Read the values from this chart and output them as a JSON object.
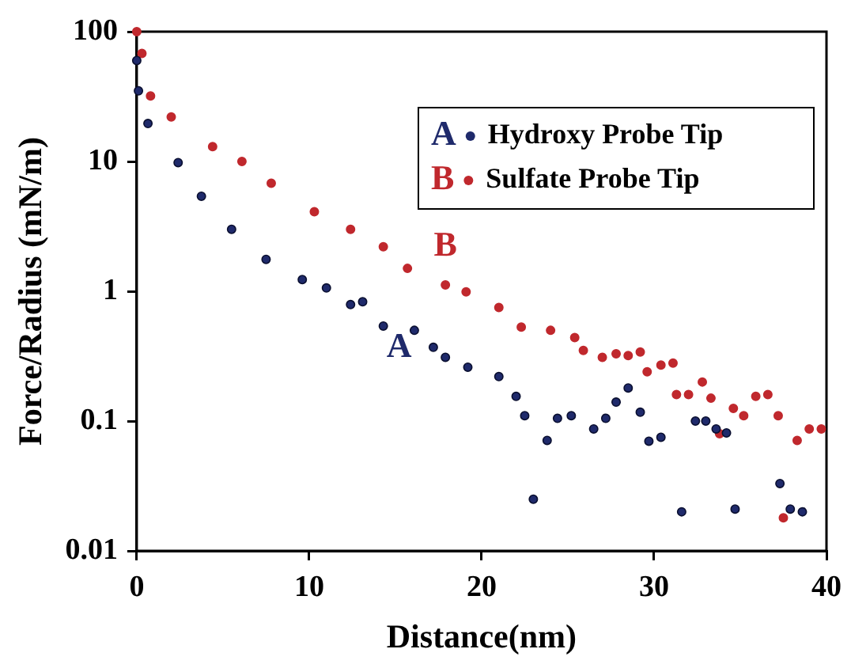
{
  "chart_data": {
    "type": "scatter",
    "xlabel": "Distance(nm)",
    "ylabel": "Force/Radius (mN/m)",
    "log": "y",
    "grid": false,
    "legend": "top right",
    "marker": "circle",
    "xlim": [
      0,
      40
    ],
    "xticks": [
      0,
      10,
      20,
      30,
      40
    ],
    "ylim": [
      0.01,
      100
    ],
    "yticks": [
      0.01,
      0.1,
      1,
      10,
      100
    ],
    "series": [
      {
        "name": "Hydroxy Probe Tip",
        "color": "#1f2a6b",
        "x": [
          0,
          0.1,
          0.65,
          2.4,
          3.75,
          5.5,
          7.5,
          9.6,
          11,
          12.4,
          13.1,
          14.3,
          16.1,
          17.2,
          17.9,
          19.2,
          21,
          22,
          22.5,
          23,
          23.8,
          24.4,
          25.2,
          26.5,
          27.2,
          27.8,
          28.5,
          29.2,
          29.7,
          30.4,
          31.6,
          32.4,
          33,
          33.6,
          34.2,
          34.7,
          37.3,
          37.9,
          38.6
        ],
        "values": [
          60,
          35,
          19.6,
          9.8,
          5.4,
          3.0,
          1.76,
          1.23,
          1.06,
          0.79,
          0.83,
          0.54,
          0.5,
          0.37,
          0.31,
          0.26,
          0.22,
          0.155,
          0.11,
          0.025,
          0.071,
          0.105,
          0.11,
          0.087,
          0.105,
          0.14,
          0.18,
          0.117,
          0.07,
          0.075,
          0.02,
          0.1,
          0.1,
          0.087,
          0.081,
          0.021,
          0.033,
          0.021,
          0.02
        ]
      },
      {
        "name": "Sulfate Probe Tip",
        "color": "#c0282d",
        "x": [
          0,
          0.3,
          0.8,
          2,
          4.4,
          6.1,
          7.8,
          10.3,
          12.4,
          14.3,
          15.7,
          17.9,
          19.1,
          21,
          22.3,
          24,
          25.4,
          25.9,
          27,
          27.8,
          28.5,
          29.2,
          29.6,
          30.4,
          31.1,
          31.3,
          32,
          32.8,
          33.3,
          33.8,
          34.6,
          35.2,
          35.9,
          36.6,
          37.2,
          37.5,
          38.3,
          39,
          39.7
        ],
        "values": [
          100,
          68,
          32,
          22,
          13,
          10,
          6.8,
          4.1,
          3.0,
          2.2,
          1.5,
          1.12,
          0.99,
          0.75,
          0.53,
          0.5,
          0.44,
          0.35,
          0.31,
          0.33,
          0.32,
          0.34,
          0.24,
          0.27,
          0.28,
          0.16,
          0.16,
          0.2,
          0.15,
          0.08,
          0.125,
          0.11,
          0.155,
          0.16,
          0.11,
          0.018,
          0.071,
          0.087,
          0.087
        ]
      }
    ],
    "annotations": [
      "A",
      "B"
    ]
  }
}
